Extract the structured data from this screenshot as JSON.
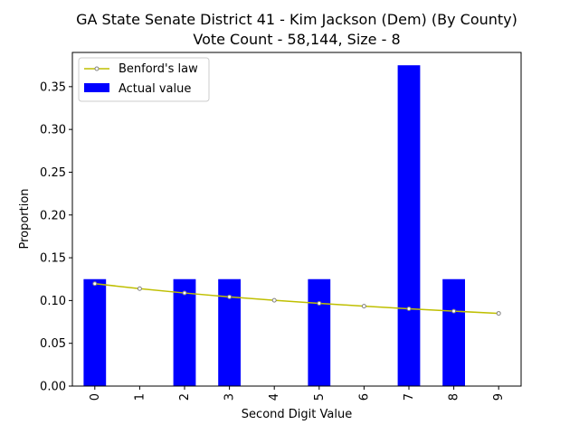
{
  "chart_data": {
    "type": "bar",
    "title": "GA State Senate District 41 - Kim Jackson (Dem) (By County)",
    "subtitle": "Vote Count - 58,144, Size - 8",
    "xlabel": "Second Digit Value",
    "ylabel": "Proportion",
    "categories": [
      "0",
      "1",
      "2",
      "3",
      "4",
      "5",
      "6",
      "7",
      "8",
      "9"
    ],
    "ylim": [
      0,
      0.39
    ],
    "yticks": [
      "0.00",
      "0.05",
      "0.10",
      "0.15",
      "0.20",
      "0.25",
      "0.30",
      "0.35"
    ],
    "grid": false,
    "legend_position": "top-left",
    "series": [
      {
        "name": "Actual value",
        "type": "bar",
        "color": "#0000ff",
        "values": [
          0.125,
          0,
          0.125,
          0.125,
          0,
          0.125,
          0,
          0.375,
          0.125,
          0
        ]
      },
      {
        "name": "Benford's law",
        "type": "line",
        "color": "#bfbf00",
        "values": [
          0.1197,
          0.1139,
          0.1088,
          0.1043,
          0.1003,
          0.0967,
          0.0934,
          0.0904,
          0.0876,
          0.085
        ]
      }
    ]
  }
}
